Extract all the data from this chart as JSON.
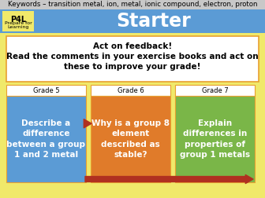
{
  "background_color": "#f0e96a",
  "keyword_bar_color": "#c8c8c8",
  "keyword_text": "Keywords – transition metal, ion, metal, ionic compound, electron, proton",
  "keyword_fontsize": 6.2,
  "header_bar_color": "#5b9bd5",
  "header_title": "Starter",
  "header_title_fontsize": 17,
  "p4l_bg_color": "#5b9bd5",
  "p4l_box_color": "#f0e96a",
  "p4l_text_line1": "P4L",
  "p4l_text_line2": "Prepare for\nLearning",
  "p4l_fontsize_title": 7,
  "p4l_fontsize_sub": 4.5,
  "feedback_box_facecolor": "#ffffff",
  "feedback_box_edgecolor": "#e8a030",
  "feedback_text_line1": "Act on feedback!",
  "feedback_text_line2": "Read the comments in your exercise books and act on",
  "feedback_text_line3": "these to improve your grade!",
  "feedback_fontsize": 7.5,
  "grade5_header_color": "#ffffff",
  "grade5_body_color": "#5b9bd5",
  "grade5_label": "Grade 5",
  "grade5_text": "Describe a\ndifference\nbetween a group\n1 and 2 metal",
  "grade6_header_color": "#ffffff",
  "grade6_body_color": "#e07b2a",
  "grade6_label": "Grade 6",
  "grade6_text": "Why is a group 8\nelement\ndescribed as\nstable?",
  "grade7_header_color": "#ffffff",
  "grade7_body_color": "#7ab648",
  "grade7_label": "Grade 7",
  "grade7_text": "Explain\ndifferences in\nproperties of\ngroup 1 metals",
  "grade_label_fontsize": 6,
  "grade_text_fontsize": 7.5,
  "grade_box_edgecolor": "#e8a030",
  "arrow_color": "#b03020"
}
